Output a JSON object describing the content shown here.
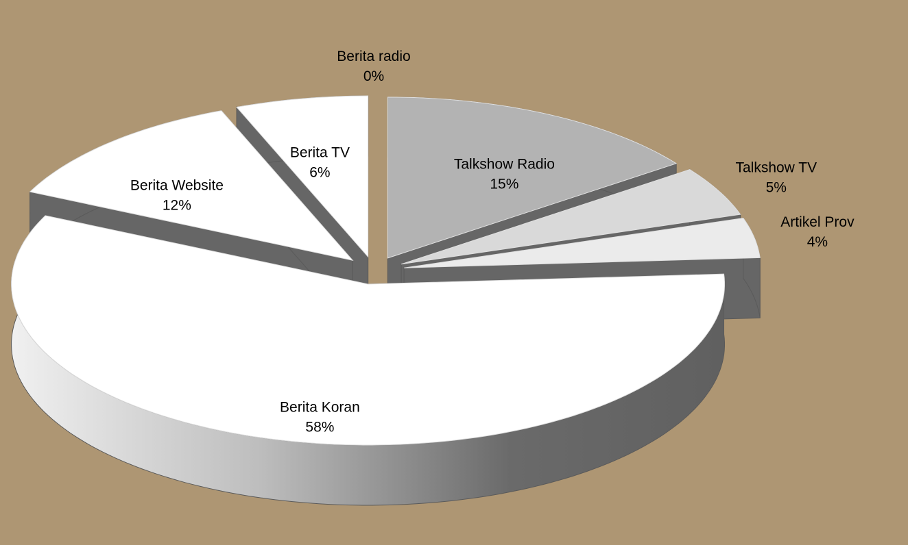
{
  "chart_data": {
    "type": "pie3d",
    "categories": [
      "Berita radio",
      "Talkshow Radio",
      "Talkshow TV",
      "Artikel Prov",
      "Berita Koran",
      "Berita Website",
      "Berita TV"
    ],
    "values": [
      0,
      15,
      5,
      4,
      58,
      12,
      6
    ],
    "value_labels": [
      "0%",
      "15%",
      "5%",
      "4%",
      "58%",
      "12%",
      "6%"
    ],
    "colors": [
      "#cccccc",
      "#b3b3b3",
      "#d9d9d9",
      "#ebebeb",
      "#ffffff",
      "#ffffff",
      "#ffffff"
    ],
    "exploded": true
  }
}
